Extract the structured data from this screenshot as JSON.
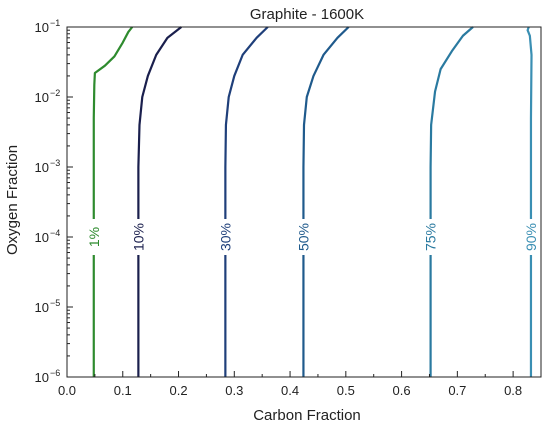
{
  "chart_data": {
    "type": "line",
    "title": "Graphite - 1600K",
    "xlabel": "Carbon Fraction",
    "ylabel": "Oxygen Fraction",
    "xlim": [
      0.0,
      0.85
    ],
    "ylim": [
      1e-06,
      0.1
    ],
    "yscale": "log",
    "grid": false,
    "legend": "none",
    "x_ticks": [
      {
        "value": 0.0,
        "label": "0.0"
      },
      {
        "value": 0.1,
        "label": "0.1"
      },
      {
        "value": 0.2,
        "label": "0.2"
      },
      {
        "value": 0.3,
        "label": "0.3"
      },
      {
        "value": 0.4,
        "label": "0.4"
      },
      {
        "value": 0.5,
        "label": "0.5"
      },
      {
        "value": 0.6,
        "label": "0.6"
      },
      {
        "value": 0.7,
        "label": "0.7"
      },
      {
        "value": 0.8,
        "label": "0.8"
      }
    ],
    "y_ticks": [
      {
        "value": 1e-06,
        "base": "10",
        "exp": "−6"
      },
      {
        "value": 1e-05,
        "base": "10",
        "exp": "−5"
      },
      {
        "value": 0.0001,
        "base": "10",
        "exp": "−4"
      },
      {
        "value": 0.001,
        "base": "10",
        "exp": "−3"
      },
      {
        "value": 0.01,
        "base": "10",
        "exp": "−2"
      },
      {
        "value": 0.1,
        "base": "10",
        "exp": "−1"
      }
    ],
    "series": [
      {
        "label": "1%",
        "color": "#2e8b2e",
        "label_x": 0.048,
        "label_y": 0.0001,
        "points": [
          [
            0.048,
            1e-06
          ],
          [
            0.048,
            0.0001
          ],
          [
            0.048,
            0.005
          ],
          [
            0.049,
            0.015
          ],
          [
            0.05,
            0.022
          ],
          [
            0.068,
            0.028
          ],
          [
            0.085,
            0.038
          ],
          [
            0.1,
            0.06
          ],
          [
            0.11,
            0.085
          ],
          [
            0.117,
            0.1
          ]
        ]
      },
      {
        "label": "10%",
        "color": "#1a1f4d",
        "label_x": 0.128,
        "label_y": 0.0001,
        "points": [
          [
            0.128,
            1e-06
          ],
          [
            0.128,
            0.0001
          ],
          [
            0.128,
            0.001
          ],
          [
            0.13,
            0.004
          ],
          [
            0.135,
            0.01
          ],
          [
            0.145,
            0.02
          ],
          [
            0.16,
            0.04
          ],
          [
            0.18,
            0.07
          ],
          [
            0.205,
            0.1
          ]
        ]
      },
      {
        "label": "30%",
        "color": "#1f3f7a",
        "label_x": 0.284,
        "label_y": 0.0001,
        "points": [
          [
            0.284,
            1e-06
          ],
          [
            0.284,
            0.0001
          ],
          [
            0.284,
            0.001
          ],
          [
            0.285,
            0.004
          ],
          [
            0.29,
            0.01
          ],
          [
            0.3,
            0.02
          ],
          [
            0.315,
            0.04
          ],
          [
            0.34,
            0.07
          ],
          [
            0.36,
            0.1
          ]
        ]
      },
      {
        "label": "50%",
        "color": "#1f5a8c",
        "label_x": 0.424,
        "label_y": 0.0001,
        "points": [
          [
            0.424,
            1e-06
          ],
          [
            0.424,
            0.0001
          ],
          [
            0.424,
            0.001
          ],
          [
            0.425,
            0.004
          ],
          [
            0.43,
            0.01
          ],
          [
            0.442,
            0.02
          ],
          [
            0.46,
            0.04
          ],
          [
            0.485,
            0.07
          ],
          [
            0.505,
            0.1
          ]
        ]
      },
      {
        "label": "75%",
        "color": "#2a7aa0",
        "label_x": 0.652,
        "label_y": 0.0001,
        "points": [
          [
            0.652,
            1e-06
          ],
          [
            0.652,
            0.0001
          ],
          [
            0.652,
            0.001
          ],
          [
            0.653,
            0.004
          ],
          [
            0.66,
            0.012
          ],
          [
            0.67,
            0.025
          ],
          [
            0.69,
            0.045
          ],
          [
            0.71,
            0.075
          ],
          [
            0.728,
            0.1
          ]
        ]
      },
      {
        "label": "90%",
        "color": "#3a8fb3",
        "label_x": 0.832,
        "label_y": 0.0001,
        "points": [
          [
            0.832,
            1e-06
          ],
          [
            0.832,
            0.0001
          ],
          [
            0.832,
            0.005
          ],
          [
            0.833,
            0.04
          ],
          [
            0.83,
            0.075
          ],
          [
            0.826,
            0.09
          ],
          [
            0.828,
            0.1
          ]
        ]
      }
    ]
  }
}
